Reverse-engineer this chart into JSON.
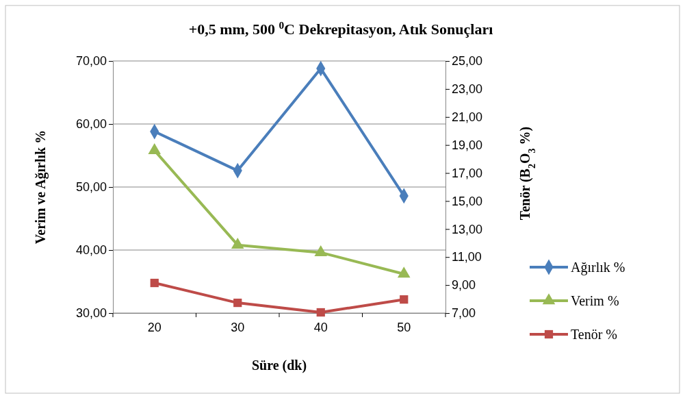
{
  "chart_data": {
    "type": "line",
    "title": "+0,5 mm, 500 $^{0}$C Dekrepitasyon, Atık Sonuçları",
    "xlabel": "Süre (dk)",
    "ylabel": "Verim ve Ağırlık %",
    "y2label": "Tenör (B$_{2}$O$_{3}$ %)",
    "categories": [
      "20",
      "30",
      "40",
      "50"
    ],
    "ylim": [
      30,
      70
    ],
    "yticks": [
      {
        "value": 30,
        "label": "30,00"
      },
      {
        "value": 40,
        "label": "40,00"
      },
      {
        "value": 50,
        "label": "50,00"
      },
      {
        "value": 60,
        "label": "60,00"
      },
      {
        "value": 70,
        "label": "70,00"
      }
    ],
    "y2lim": [
      7,
      25
    ],
    "y2ticks": [
      {
        "value": 7,
        "label": "7,00"
      },
      {
        "value": 9,
        "label": "9,00"
      },
      {
        "value": 11,
        "label": "11,00"
      },
      {
        "value": 13,
        "label": "13,00"
      },
      {
        "value": 15,
        "label": "15,00"
      },
      {
        "value": 17,
        "label": "17,00"
      },
      {
        "value": 19,
        "label": "19,00"
      },
      {
        "value": 21,
        "label": "21,00"
      },
      {
        "value": 23,
        "label": "23,00"
      },
      {
        "value": 25,
        "label": "25,00"
      }
    ],
    "grid": "y",
    "legend": "right",
    "series": [
      {
        "name": "Ağırlık %",
        "color": "#4a7ebb",
        "marker": "diamond",
        "values": [
          58.8,
          52.6,
          68.8,
          48.6
        ]
      },
      {
        "name": "Verim %",
        "color": "#98b954",
        "marker": "triangle",
        "values": [
          55.8,
          40.8,
          39.6,
          36.2
        ]
      },
      {
        "name": "Tenör %",
        "color": "#be4b48",
        "marker": "square",
        "axis": "y2",
        "values": [
          9.15,
          7.73,
          7.05,
          7.97
        ]
      }
    ]
  }
}
